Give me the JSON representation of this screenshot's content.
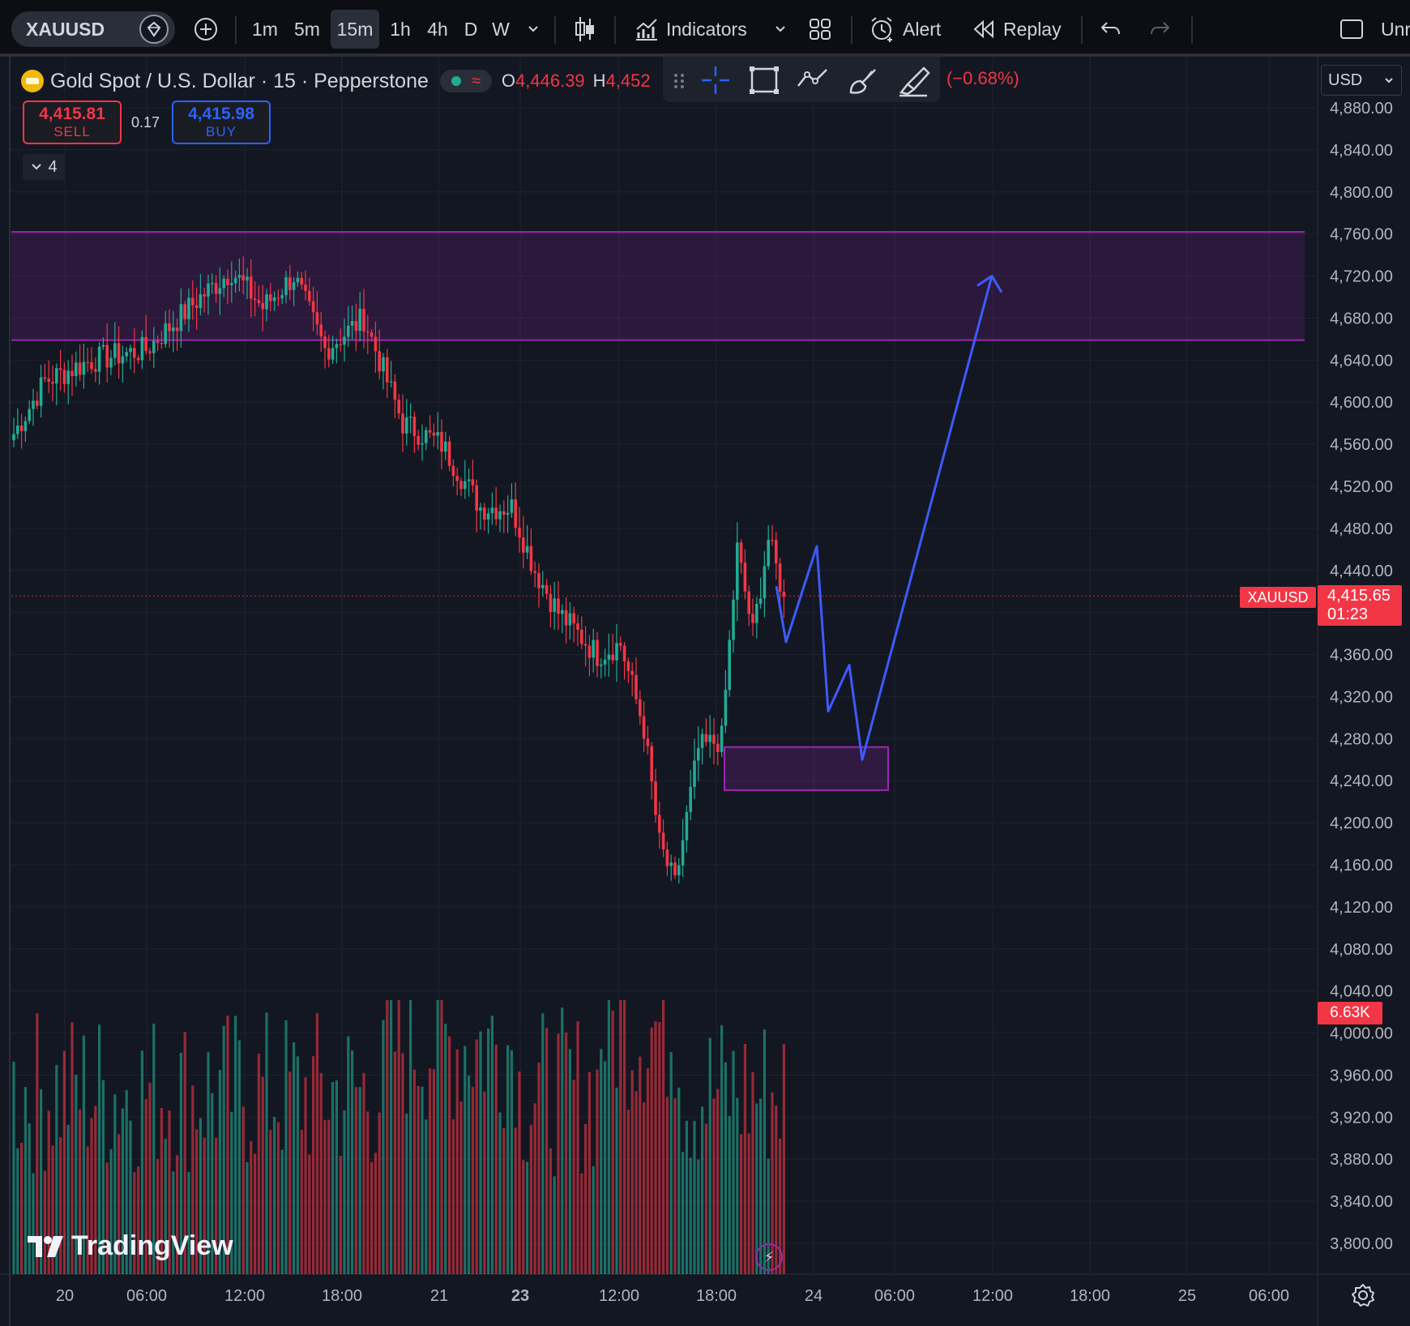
{
  "toolbar": {
    "symbol": "XAUUSD",
    "timeframes": [
      "1m",
      "5m",
      "15m",
      "1h",
      "4h",
      "D",
      "W"
    ],
    "active_timeframe": "15m",
    "indicators_label": "Indicators",
    "alert_label": "Alert",
    "replay_label": "Replay",
    "right_label": "Unr"
  },
  "legend": {
    "title": "Gold Spot / U.S. Dollar · 15 · Pepperstone",
    "open_prefix": "O",
    "open_value": "4,446.39",
    "high_prefix": "H",
    "high_value": "4,452",
    "change": "(−0.68%)",
    "status_symbol": "≈"
  },
  "order_panel": {
    "sell_price": "4,415.81",
    "sell_label": "SELL",
    "spread": "0.17",
    "buy_price": "4,415.98",
    "buy_label": "BUY",
    "collapsed_count": "4"
  },
  "price_scale": {
    "currency": "USD",
    "ticks": [
      "4,880.00",
      "4,840.00",
      "4,800.00",
      "4,760.00",
      "4,720.00",
      "4,680.00",
      "4,640.00",
      "4,600.00",
      "4,560.00",
      "4,520.00",
      "4,480.00",
      "4,440.00",
      "4,400.00",
      "4,360.00",
      "4,320.00",
      "4,280.00",
      "4,240.00",
      "4,200.00",
      "4,160.00",
      "4,120.00",
      "4,080.00",
      "4,040.00",
      "4,000.00",
      "3,960.00",
      "3,920.00",
      "3,880.00",
      "3,840.00",
      "3,800.00"
    ],
    "current_symbol": "XAUUSD",
    "current_price": "4,415.65",
    "countdown": "01:23",
    "volume_label": "6.63K"
  },
  "time_axis": {
    "labels": [
      "20",
      "06:00",
      "12:00",
      "18:00",
      "21",
      "23",
      "12:00",
      "18:00",
      "24",
      "06:00",
      "12:00",
      "18:00",
      "25",
      "06:00"
    ],
    "bold_label_index": 5
  },
  "branding": {
    "logo_text": "TradingView"
  },
  "colors": {
    "background": "#131722",
    "up": "#22ab94",
    "down": "#f23645",
    "zone": "#9c27b0",
    "projection": "#3d5afe"
  },
  "chart_data": {
    "type": "candlestick",
    "title": "Gold Spot / U.S. Dollar · 15 · Pepperstone",
    "ylim": [
      3780,
      4900
    ],
    "y_ticks": [
      4880,
      4840,
      4800,
      4760,
      4720,
      4680,
      4640,
      4600,
      4560,
      4520,
      4480,
      4440,
      4400,
      4360,
      4320,
      4280,
      4240,
      4200,
      4160,
      4120,
      4080,
      4040,
      4000,
      3960,
      3920,
      3880,
      3840,
      3800
    ],
    "current_price": 4415.65,
    "price_path_keypoints": [
      [
        0,
        4570
      ],
      [
        8,
        4620
      ],
      [
        20,
        4640
      ],
      [
        34,
        4650
      ],
      [
        48,
        4700
      ],
      [
        56,
        4725
      ],
      [
        64,
        4690
      ],
      [
        72,
        4720
      ],
      [
        80,
        4650
      ],
      [
        90,
        4680
      ],
      [
        100,
        4580
      ],
      [
        110,
        4560
      ],
      [
        120,
        4500
      ],
      [
        128,
        4500
      ],
      [
        134,
        4440
      ],
      [
        140,
        4400
      ],
      [
        150,
        4360
      ],
      [
        156,
        4370
      ],
      [
        162,
        4290
      ],
      [
        166,
        4180
      ],
      [
        170,
        4140
      ],
      [
        176,
        4270
      ],
      [
        182,
        4280
      ],
      [
        186,
        4460
      ],
      [
        190,
        4380
      ],
      [
        194,
        4470
      ],
      [
        198,
        4415
      ]
    ],
    "supply_zone": {
      "top": 4762,
      "bottom": 4659
    },
    "demand_zone": {
      "top": 4272,
      "bottom": 4231
    },
    "projection_path": [
      4425,
      4372,
      4463,
      4306,
      4350,
      4260,
      4720
    ]
  }
}
